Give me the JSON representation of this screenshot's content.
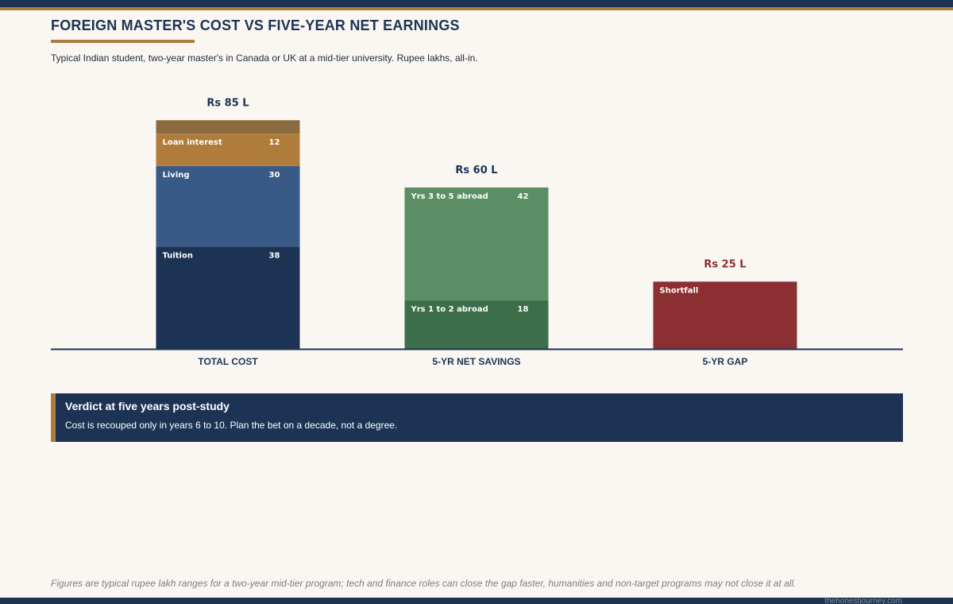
{
  "header": {
    "title": "FOREIGN MASTER'S COST VS FIVE-YEAR NET EARNINGS",
    "subtitle": "Typical Indian student, two-year master's in Canada or UK at a mid-tier university. Rupee lakhs, all-in."
  },
  "colors": {
    "navy": "#1c3354",
    "gold": "#b07c3c",
    "other_cost": "#8b6a40",
    "living": "#395a86",
    "tuition": "#1c3354",
    "savings_later": "#5b8e65",
    "savings_early": "#3c6e4a",
    "shortfall": "#8b2f33",
    "background": "#faf7f2"
  },
  "chart_data": {
    "type": "bar",
    "stacked": true,
    "unit": "Rupee lakhs",
    "categories": [
      "TOTAL COST",
      "5-YR NET SAVINGS",
      "5-YR GAP"
    ],
    "ylim": [
      0,
      85
    ],
    "bars": [
      {
        "category": "TOTAL COST",
        "total": 85,
        "total_label": "Rs 85 L",
        "total_color": "#1c3354",
        "segments": [
          {
            "label": "Tuition",
            "value": 38,
            "value_label": "38",
            "color": "#1c3354"
          },
          {
            "label": "Living",
            "value": 30,
            "value_label": "30",
            "color": "#395a86"
          },
          {
            "label": "Loan interest",
            "value": 12,
            "value_label": "12",
            "color": "#b07c3c"
          },
          {
            "label": "",
            "value": 5,
            "value_label": "",
            "color": "#8b6a40"
          }
        ]
      },
      {
        "category": "5-YR NET SAVINGS",
        "total": 60,
        "total_label": "Rs 60 L",
        "total_color": "#1c3354",
        "segments": [
          {
            "label": "Yrs 1 to 2 abroad",
            "value": 18,
            "value_label": "18",
            "color": "#3c6e4a"
          },
          {
            "label": "Yrs 3 to 5 abroad",
            "value": 42,
            "value_label": "42",
            "color": "#5b8e65"
          }
        ]
      },
      {
        "category": "5-YR GAP",
        "total": 25,
        "total_label": "Rs 25 L",
        "total_color": "#8b2f33",
        "segments": [
          {
            "label": "Shortfall",
            "value": 25,
            "value_label": "",
            "color": "#8b2f33"
          }
        ]
      }
    ]
  },
  "verdict": {
    "title": "Verdict at five years post-study",
    "body": "Cost is recouped only in years 6 to 10. Plan the bet on a decade, not a degree."
  },
  "footnote": "Figures are typical rupee lakh ranges for a two-year mid-tier program; tech and finance roles can close the gap faster, humanities and non-target programs may not close it at all.",
  "credit": "thehonestjourney.com"
}
